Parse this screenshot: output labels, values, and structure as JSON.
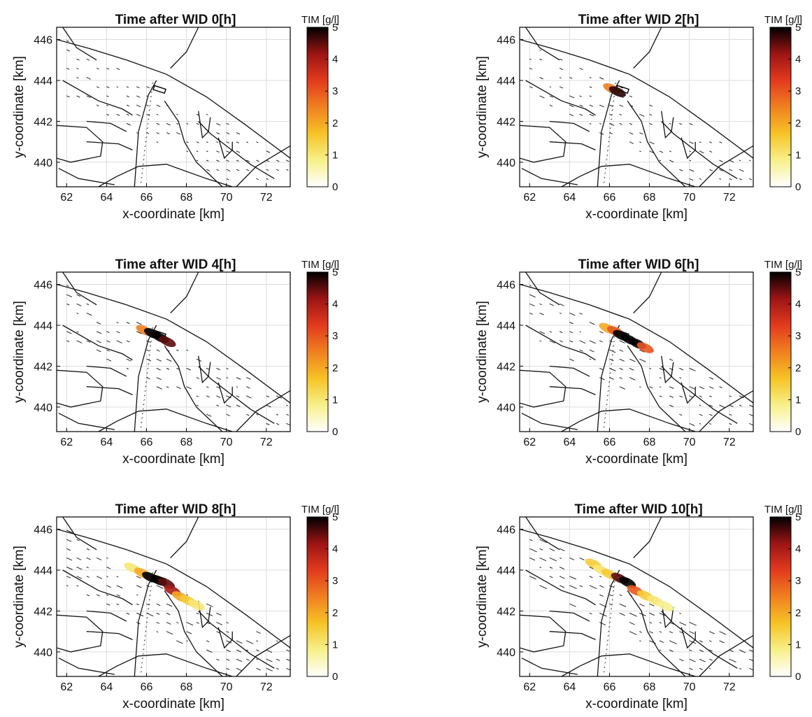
{
  "chart_data": [
    {
      "type": "heatmap",
      "title": "Time after WID 0[h]",
      "xlabel": "x-coordinate [km]",
      "ylabel": "y-coordinate [km]",
      "xticks": [
        62,
        64,
        66,
        68,
        70,
        72
      ],
      "yticks": [
        440,
        442,
        444,
        446
      ],
      "xlim": [
        61.5,
        73.2
      ],
      "ylim": [
        438.8,
        446.6
      ],
      "grid": true,
      "colorbar": {
        "title": "TIM [g/l]",
        "ticks": [
          0,
          1,
          2,
          3,
          4,
          5
        ],
        "range": [
          0,
          5
        ],
        "colors": [
          "#ffffff",
          "#f7f08a",
          "#f6c326",
          "#f08020",
          "#e23a1e",
          "#9c1414",
          "#000000"
        ]
      },
      "plume": []
    },
    {
      "type": "heatmap",
      "title": "Time after WID 2[h]",
      "xlabel": "x-coordinate [km]",
      "ylabel": "y-coordinate [km]",
      "xticks": [
        62,
        64,
        66,
        68,
        70,
        72
      ],
      "yticks": [
        440,
        442,
        444,
        446
      ],
      "xlim": [
        61.5,
        73.2
      ],
      "ylim": [
        438.8,
        446.6
      ],
      "grid": true,
      "colorbar": {
        "title": "TIM [g/l]",
        "ticks": [
          0,
          1,
          2,
          3,
          4,
          5
        ],
        "range": [
          0,
          5
        ],
        "colors": [
          "#ffffff",
          "#f7f08a",
          "#f6c326",
          "#f08020",
          "#e23a1e",
          "#9c1414",
          "#000000"
        ]
      },
      "plume": [
        {
          "x": 66.1,
          "y": 443.6,
          "value": 2.5
        },
        {
          "x": 66.4,
          "y": 443.45,
          "value": 4.8
        }
      ]
    },
    {
      "type": "heatmap",
      "title": "Time after WID 4[h]",
      "xlabel": "x-coordinate [km]",
      "ylabel": "y-coordinate [km]",
      "xticks": [
        62,
        64,
        66,
        68,
        70,
        72
      ],
      "yticks": [
        440,
        442,
        444,
        446
      ],
      "xlim": [
        61.5,
        73.2
      ],
      "ylim": [
        438.8,
        446.6
      ],
      "grid": true,
      "colorbar": {
        "title": "TIM [g/l]",
        "ticks": [
          0,
          1,
          2,
          3,
          4,
          5
        ],
        "range": [
          0,
          5
        ],
        "colors": [
          "#ffffff",
          "#f7f08a",
          "#f6c326",
          "#f08020",
          "#e23a1e",
          "#9c1414",
          "#000000"
        ]
      },
      "plume": [
        {
          "x": 65.9,
          "y": 443.75,
          "value": 2.5
        },
        {
          "x": 66.3,
          "y": 443.6,
          "value": 5
        },
        {
          "x": 66.7,
          "y": 443.4,
          "value": 5
        },
        {
          "x": 67.05,
          "y": 443.2,
          "value": 4.5
        }
      ]
    },
    {
      "type": "heatmap",
      "title": "Time after WID 6[h]",
      "xlabel": "x-coordinate [km]",
      "ylabel": "y-coordinate [km]",
      "xticks": [
        62,
        64,
        66,
        68,
        70,
        72
      ],
      "yticks": [
        440,
        442,
        444,
        446
      ],
      "xlim": [
        61.5,
        73.2
      ],
      "ylim": [
        438.8,
        446.6
      ],
      "grid": true,
      "colorbar": {
        "title": "TIM [g/l]",
        "ticks": [
          0,
          1,
          2,
          3,
          4,
          5
        ],
        "range": [
          0,
          5
        ],
        "colors": [
          "#ffffff",
          "#f7f08a",
          "#f6c326",
          "#f08020",
          "#e23a1e",
          "#9c1414",
          "#000000"
        ]
      },
      "plume": [
        {
          "x": 65.9,
          "y": 443.85,
          "value": 2
        },
        {
          "x": 66.3,
          "y": 443.7,
          "value": 3
        },
        {
          "x": 66.6,
          "y": 443.5,
          "value": 5
        },
        {
          "x": 67.0,
          "y": 443.3,
          "value": 5
        },
        {
          "x": 67.4,
          "y": 443.1,
          "value": 5
        },
        {
          "x": 67.8,
          "y": 442.9,
          "value": 3
        }
      ]
    },
    {
      "type": "heatmap",
      "title": "Time after WID 8[h]",
      "xlabel": "x-coordinate [km]",
      "ylabel": "y-coordinate [km]",
      "xticks": [
        62,
        64,
        66,
        68,
        70,
        72
      ],
      "yticks": [
        440,
        442,
        444,
        446
      ],
      "xlim": [
        61.5,
        73.2
      ],
      "ylim": [
        438.8,
        446.6
      ],
      "grid": true,
      "colorbar": {
        "title": "TIM [g/l]",
        "ticks": [
          0,
          1,
          2,
          3,
          4,
          5
        ],
        "range": [
          0,
          5
        ],
        "colors": [
          "#ffffff",
          "#f7f08a",
          "#f6c326",
          "#f08020",
          "#e23a1e",
          "#9c1414",
          "#000000"
        ]
      },
      "plume": [
        {
          "x": 65.3,
          "y": 444.1,
          "value": 1
        },
        {
          "x": 65.8,
          "y": 443.85,
          "value": 2
        },
        {
          "x": 66.2,
          "y": 443.65,
          "value": 5
        },
        {
          "x": 66.6,
          "y": 443.5,
          "value": 5
        },
        {
          "x": 67.0,
          "y": 443.35,
          "value": 4.5
        },
        {
          "x": 67.3,
          "y": 443.0,
          "value": 4
        },
        {
          "x": 67.7,
          "y": 442.7,
          "value": 2
        },
        {
          "x": 68.1,
          "y": 442.5,
          "value": 1.5
        },
        {
          "x": 68.5,
          "y": 442.3,
          "value": 1
        }
      ]
    },
    {
      "type": "heatmap",
      "title": "Time after WID 10[h]",
      "xlabel": "x-coordinate [km]",
      "ylabel": "y-coordinate [km]",
      "xticks": [
        62,
        64,
        66,
        68,
        70,
        72
      ],
      "yticks": [
        440,
        442,
        444,
        446
      ],
      "xlim": [
        61.5,
        73.2
      ],
      "ylim": [
        438.8,
        446.6
      ],
      "grid": true,
      "colorbar": {
        "title": "TIM [g/l]",
        "ticks": [
          0,
          1,
          2,
          3,
          4,
          5
        ],
        "range": [
          0,
          5
        ],
        "colors": [
          "#ffffff",
          "#f7f08a",
          "#f6c326",
          "#f08020",
          "#e23a1e",
          "#9c1414",
          "#000000"
        ]
      },
      "plume": [
        {
          "x": 65.2,
          "y": 444.3,
          "value": 1.5
        },
        {
          "x": 65.6,
          "y": 444.0,
          "value": 1
        },
        {
          "x": 66.0,
          "y": 443.8,
          "value": 1.5
        },
        {
          "x": 66.5,
          "y": 443.6,
          "value": 4.5
        },
        {
          "x": 66.9,
          "y": 443.4,
          "value": 5
        },
        {
          "x": 67.3,
          "y": 443.0,
          "value": 3
        },
        {
          "x": 67.8,
          "y": 442.75,
          "value": 1.5
        },
        {
          "x": 68.3,
          "y": 442.5,
          "value": 1
        },
        {
          "x": 68.8,
          "y": 442.25,
          "value": 0.8
        }
      ]
    }
  ]
}
